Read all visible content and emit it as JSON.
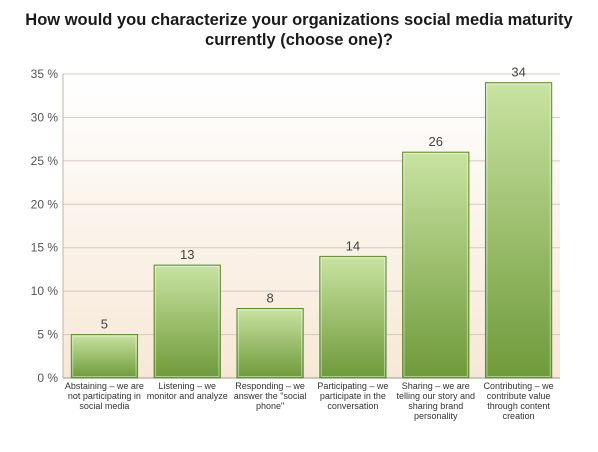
{
  "chart_data": {
    "type": "bar",
    "title": [
      "How would you characterize your organizations social media maturity",
      "currently (choose one)?"
    ],
    "categories": [
      [
        "Abstaining – we are",
        "not participating in",
        "social media"
      ],
      [
        "Listening – we",
        "monitor and analyze"
      ],
      [
        "Responding – we",
        "answer the \"social",
        "phone\""
      ],
      [
        "Participating – we",
        "participate in the",
        "conversation"
      ],
      [
        "Sharing – we are",
        "telling our story and",
        "sharing brand",
        "personality"
      ],
      [
        "Contributing – we",
        "contribute value",
        "through content",
        "creation"
      ]
    ],
    "values": [
      5,
      13,
      8,
      14,
      26,
      34
    ],
    "data_labels": [
      "5",
      "13",
      "8",
      "14",
      "26",
      "34"
    ],
    "ylim": [
      0,
      35
    ],
    "yticks": [
      "0 %",
      "5 %",
      "10 %",
      "15 %",
      "20 %",
      "25 %",
      "30 %",
      "35 %"
    ],
    "grid": true,
    "xlabel": "",
    "ylabel": "",
    "colors": {
      "bar_top": "#c9e3a1",
      "bar_bottom": "#6e9a3a",
      "bar_border": "#5f8a30",
      "plot_bg_top": "#ffffff",
      "plot_bg_bottom": "#f7e8d6",
      "grid": "#d6c9bc"
    }
  }
}
